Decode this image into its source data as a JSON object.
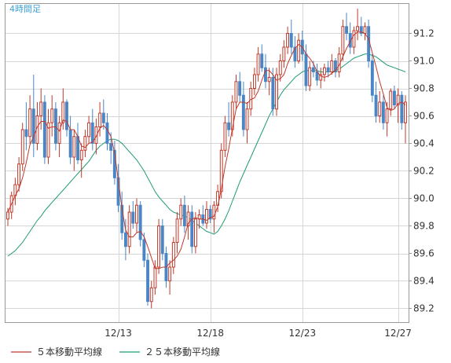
{
  "chart_data": {
    "type": "candlestick",
    "timeframe_label": "4時間足",
    "x_tick_labels": [
      "12/13",
      "12/18",
      "12/23",
      "12/27"
    ],
    "y_ticks": [
      89.2,
      89.4,
      89.6,
      89.8,
      90.0,
      90.2,
      90.4,
      90.6,
      90.8,
      91.0,
      91.2
    ],
    "ylim": [
      89.1,
      91.42
    ],
    "grid": true,
    "legend_position": "bottom-left",
    "colors": {
      "up": "#c0392b",
      "down": "#4a86c5",
      "ma5": "#c0392b",
      "ma25": "#1e9c74",
      "grid": "#d6d6d6",
      "axis": "#999999"
    },
    "legend": [
      {
        "label": "５本移動平均線",
        "color": "#c0392b"
      },
      {
        "label": "２５本移動平均線",
        "color": "#1e9c74"
      }
    ],
    "candles": [
      [
        89.85,
        89.93,
        89.8,
        89.9
      ],
      [
        89.9,
        90.05,
        89.85,
        90.02
      ],
      [
        90.02,
        90.15,
        89.95,
        90.1
      ],
      [
        90.1,
        90.3,
        90.05,
        90.25
      ],
      [
        90.25,
        90.55,
        90.2,
        90.5
      ],
      [
        90.5,
        90.7,
        90.35,
        90.45
      ],
      [
        90.45,
        90.75,
        90.4,
        90.65
      ],
      [
        90.65,
        90.9,
        90.3,
        90.4
      ],
      [
        90.4,
        90.7,
        90.35,
        90.6
      ],
      [
        90.6,
        90.8,
        90.5,
        90.7
      ],
      [
        90.7,
        90.75,
        90.25,
        90.3
      ],
      [
        90.3,
        90.65,
        90.25,
        90.55
      ],
      [
        90.55,
        90.75,
        90.45,
        90.65
      ],
      [
        90.65,
        90.7,
        90.35,
        90.4
      ],
      [
        90.4,
        90.6,
        90.3,
        90.55
      ],
      [
        90.55,
        90.8,
        90.5,
        90.7
      ],
      [
        90.7,
        90.72,
        90.45,
        90.5
      ],
      [
        90.5,
        90.6,
        90.25,
        90.3
      ],
      [
        90.3,
        90.5,
        90.2,
        90.45
      ],
      [
        90.45,
        90.55,
        90.25,
        90.28
      ],
      [
        90.28,
        90.4,
        90.15,
        90.35
      ],
      [
        90.35,
        90.5,
        90.3,
        90.45
      ],
      [
        90.45,
        90.6,
        90.4,
        90.55
      ],
      [
        90.55,
        90.65,
        90.35,
        90.4
      ],
      [
        90.4,
        90.58,
        90.32,
        90.52
      ],
      [
        90.52,
        90.7,
        90.45,
        90.62
      ],
      [
        90.62,
        90.72,
        90.5,
        90.55
      ],
      [
        90.55,
        90.62,
        90.35,
        90.4
      ],
      [
        90.4,
        90.48,
        90.25,
        90.35
      ],
      [
        90.35,
        90.42,
        90.1,
        90.15
      ],
      [
        90.15,
        90.25,
        89.9,
        89.95
      ],
      [
        89.95,
        90.05,
        89.7,
        89.75
      ],
      [
        89.75,
        89.85,
        89.55,
        89.65
      ],
      [
        89.65,
        89.95,
        89.6,
        89.9
      ],
      [
        89.9,
        89.98,
        89.78,
        89.82
      ],
      [
        89.82,
        90.0,
        89.75,
        89.95
      ],
      [
        89.95,
        89.98,
        89.65,
        89.7
      ],
      [
        89.7,
        89.75,
        89.5,
        89.55
      ],
      [
        89.55,
        89.6,
        89.22,
        89.25
      ],
      [
        89.25,
        89.4,
        89.2,
        89.35
      ],
      [
        89.35,
        89.55,
        89.3,
        89.5
      ],
      [
        89.5,
        89.85,
        89.45,
        89.8
      ],
      [
        89.8,
        89.85,
        89.55,
        89.6
      ],
      [
        89.6,
        89.65,
        89.35,
        89.4
      ],
      [
        89.4,
        89.55,
        89.3,
        89.5
      ],
      [
        89.5,
        89.72,
        89.45,
        89.68
      ],
      [
        89.68,
        89.9,
        89.6,
        89.85
      ],
      [
        89.85,
        90.0,
        89.8,
        89.95
      ],
      [
        89.95,
        90.02,
        89.75,
        89.8
      ],
      [
        89.8,
        89.95,
        89.7,
        89.9
      ],
      [
        89.9,
        89.95,
        89.6,
        89.65
      ],
      [
        89.65,
        89.9,
        89.6,
        89.85
      ],
      [
        89.85,
        89.92,
        89.78,
        89.88
      ],
      [
        89.88,
        89.95,
        89.8,
        89.82
      ],
      [
        89.82,
        89.98,
        89.78,
        89.92
      ],
      [
        89.92,
        89.95,
        89.82,
        89.85
      ],
      [
        89.85,
        89.98,
        89.75,
        89.95
      ],
      [
        89.95,
        90.1,
        89.9,
        90.05
      ],
      [
        90.05,
        90.4,
        90.0,
        90.35
      ],
      [
        90.35,
        90.6,
        90.3,
        90.55
      ],
      [
        90.55,
        90.7,
        90.45,
        90.5
      ],
      [
        90.5,
        90.75,
        90.45,
        90.7
      ],
      [
        90.7,
        90.9,
        90.65,
        90.85
      ],
      [
        90.85,
        90.92,
        90.7,
        90.75
      ],
      [
        90.75,
        90.85,
        90.45,
        90.5
      ],
      [
        90.5,
        90.7,
        90.4,
        90.65
      ],
      [
        90.65,
        90.85,
        90.6,
        90.8
      ],
      [
        90.8,
        90.95,
        90.75,
        90.9
      ],
      [
        90.9,
        91.1,
        90.85,
        91.05
      ],
      [
        91.05,
        91.12,
        90.92,
        90.95
      ],
      [
        90.95,
        91.05,
        90.8,
        90.85
      ],
      [
        90.85,
        90.95,
        90.75,
        90.88
      ],
      [
        90.88,
        90.95,
        90.6,
        90.65
      ],
      [
        90.65,
        90.95,
        90.6,
        90.9
      ],
      [
        90.9,
        91.05,
        90.85,
        91.0
      ],
      [
        91.0,
        91.15,
        90.95,
        91.1
      ],
      [
        91.1,
        91.25,
        91.05,
        91.2
      ],
      [
        91.2,
        91.3,
        91.05,
        91.1
      ],
      [
        91.1,
        91.18,
        90.95,
        91.0
      ],
      [
        91.0,
        91.2,
        90.98,
        91.15
      ],
      [
        91.15,
        91.22,
        91.0,
        91.05
      ],
      [
        91.05,
        91.12,
        90.78,
        90.82
      ],
      [
        90.82,
        91.0,
        90.78,
        90.95
      ],
      [
        90.95,
        91.0,
        90.88,
        90.92
      ],
      [
        90.92,
        90.98,
        90.82,
        90.86
      ],
      [
        90.86,
        90.95,
        90.8,
        90.9
      ],
      [
        90.9,
        90.98,
        90.85,
        90.95
      ],
      [
        90.95,
        91.0,
        90.88,
        90.92
      ],
      [
        90.92,
        91.05,
        90.9,
        91.0
      ],
      [
        91.0,
        91.02,
        90.88,
        90.92
      ],
      [
        90.92,
        91.1,
        90.88,
        91.05
      ],
      [
        91.05,
        91.3,
        91.0,
        91.25
      ],
      [
        91.25,
        91.35,
        91.15,
        91.2
      ],
      [
        91.2,
        91.28,
        91.05,
        91.1
      ],
      [
        91.1,
        91.25,
        91.05,
        91.22
      ],
      [
        91.22,
        91.38,
        91.15,
        91.25
      ],
      [
        91.25,
        91.32,
        91.18,
        91.2
      ],
      [
        91.2,
        91.28,
        91.15,
        91.25
      ],
      [
        91.25,
        91.3,
        90.95,
        91.0
      ],
      [
        91.0,
        91.05,
        90.7,
        90.75
      ],
      [
        90.75,
        90.85,
        90.55,
        90.6
      ],
      [
        90.6,
        90.78,
        90.55,
        90.7
      ],
      [
        90.7,
        90.75,
        90.5,
        90.55
      ],
      [
        90.55,
        90.7,
        90.45,
        90.65
      ],
      [
        90.65,
        90.8,
        90.6,
        90.78
      ],
      [
        90.78,
        90.82,
        90.65,
        90.68
      ],
      [
        90.68,
        90.8,
        90.55,
        90.75
      ],
      [
        90.75,
        90.78,
        90.5,
        90.55
      ],
      [
        90.55,
        90.75,
        90.4,
        90.7
      ]
    ],
    "ma5": [
      89.9,
      89.96,
      90.02,
      90.07,
      90.15,
      90.26,
      90.39,
      90.45,
      90.52,
      90.56,
      90.56,
      90.51,
      90.52,
      90.52,
      90.49,
      90.57,
      90.56,
      90.5,
      90.5,
      90.45,
      90.38,
      90.37,
      90.4,
      90.41,
      90.45,
      90.51,
      90.53,
      90.5,
      90.45,
      90.33,
      90.13,
      89.93,
      89.77,
      89.72,
      89.72,
      89.75,
      89.76,
      89.72,
      89.65,
      89.57,
      89.49,
      89.49,
      89.5,
      89.5,
      89.53,
      89.55,
      89.58,
      89.63,
      89.72,
      89.82,
      89.85,
      89.86,
      89.85,
      89.85,
      89.84,
      89.86,
      89.87,
      89.94,
      90.07,
      90.23,
      90.36,
      90.51,
      90.65,
      90.7,
      90.7,
      90.69,
      90.72,
      90.73,
      90.78,
      90.86,
      90.93,
      90.93,
      90.9,
      90.86,
      90.87,
      90.9,
      90.98,
      91.04,
      91.09,
      91.12,
      91.1,
      91.05,
      91.02,
      90.98,
      90.92,
      90.89,
      90.88,
      90.89,
      90.91,
      90.93,
      90.97,
      91.03,
      91.09,
      91.14,
      91.19,
      91.21,
      91.21,
      91.2,
      91.16,
      91.06,
      90.96,
      90.85,
      90.76,
      90.66,
      90.64,
      90.65,
      90.69,
      90.7,
      90.68
    ],
    "ma25": [
      89.58,
      89.6,
      89.62,
      89.65,
      89.68,
      89.72,
      89.76,
      89.8,
      89.84,
      89.87,
      89.91,
      89.94,
      89.97,
      90.0,
      90.03,
      90.06,
      90.09,
      90.12,
      90.15,
      90.18,
      90.21,
      90.24,
      90.27,
      90.31,
      90.35,
      90.38,
      90.4,
      90.42,
      90.43,
      90.43,
      90.42,
      90.4,
      90.37,
      90.34,
      90.31,
      90.28,
      90.24,
      90.2,
      90.15,
      90.1,
      90.05,
      90.01,
      89.98,
      89.95,
      89.92,
      89.9,
      89.89,
      89.88,
      89.87,
      89.86,
      89.84,
      89.82,
      89.8,
      89.78,
      89.76,
      89.75,
      89.74,
      89.76,
      89.8,
      89.85,
      89.91,
      89.98,
      90.05,
      90.12,
      90.18,
      90.24,
      90.3,
      90.36,
      90.42,
      90.48,
      90.54,
      90.6,
      90.65,
      90.7,
      90.75,
      90.79,
      90.82,
      90.85,
      90.88,
      90.9,
      90.92,
      90.93,
      90.93,
      90.93,
      90.93,
      90.92,
      90.92,
      90.92,
      90.92,
      90.93,
      90.94,
      90.96,
      90.98,
      91.0,
      91.02,
      91.03,
      91.04,
      91.05,
      91.05,
      91.04,
      91.03,
      91.01,
      90.99,
      90.97,
      90.96,
      90.95,
      90.94,
      90.93,
      90.92
    ]
  }
}
